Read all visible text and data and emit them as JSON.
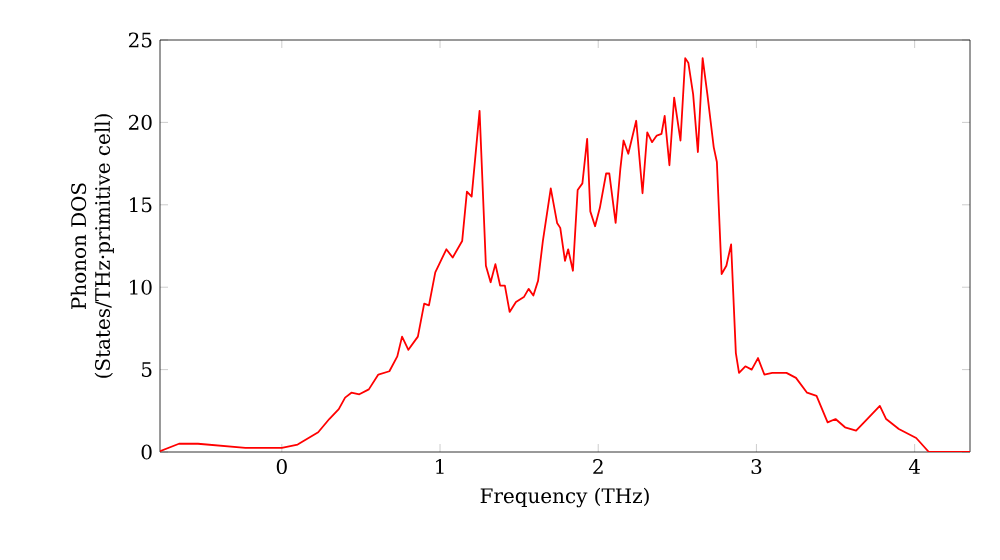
{
  "chart_data": {
    "type": "line",
    "xlabel": "Frequency (THz)",
    "ylabel": "Phonon DOS\n(States/THz·primitive cell)",
    "xlim": [
      -0.77,
      4.35
    ],
    "ylim": [
      0,
      25
    ],
    "xticks": [
      0,
      1,
      2,
      3,
      4
    ],
    "yticks": [
      0,
      5,
      10,
      15,
      20,
      25
    ],
    "series": [
      {
        "color": "#ff0000",
        "x": [
          -0.77,
          -0.65,
          -0.53,
          -0.23,
          0,
          0.1,
          0.23,
          0.3,
          0.36,
          0.4,
          0.44,
          0.49,
          0.55,
          0.61,
          0.68,
          0.73,
          0.76,
          0.8,
          0.86,
          0.9,
          0.93,
          0.97,
          1.04,
          1.08,
          1.14,
          1.17,
          1.2,
          1.25,
          1.29,
          1.32,
          1.35,
          1.38,
          1.41,
          1.44,
          1.48,
          1.53,
          1.56,
          1.59,
          1.62,
          1.65,
          1.7,
          1.74,
          1.76,
          1.79,
          1.81,
          1.84,
          1.87,
          1.9,
          1.93,
          1.95,
          1.98,
          2.01,
          2.05,
          2.07,
          2.11,
          2.14,
          2.16,
          2.19,
          2.24,
          2.28,
          2.31,
          2.34,
          2.37,
          2.4,
          2.42,
          2.45,
          2.48,
          2.52,
          2.55,
          2.57,
          2.6,
          2.63,
          2.66,
          2.69,
          2.73,
          2.75,
          2.78,
          2.81,
          2.84,
          2.87,
          2.89,
          2.93,
          2.97,
          3.01,
          3.05,
          3.1,
          3.19,
          3.25,
          3.32,
          3.38,
          3.45,
          3.5,
          3.56,
          3.63,
          3.7,
          3.78,
          3.82,
          3.9,
          4.01,
          4.09,
          4.35
        ],
        "values": [
          0.05,
          0.5,
          0.5,
          0.25,
          0.25,
          0.45,
          1.2,
          2.0,
          2.6,
          3.3,
          3.6,
          3.5,
          3.8,
          4.7,
          4.9,
          5.8,
          7.0,
          6.2,
          7.0,
          9.0,
          8.9,
          10.9,
          12.3,
          11.8,
          12.8,
          15.8,
          15.5,
          20.7,
          11.3,
          10.3,
          11.4,
          10.1,
          10.1,
          8.5,
          9.1,
          9.4,
          9.9,
          9.5,
          10.4,
          12.8,
          16.0,
          13.9,
          13.6,
          11.6,
          12.3,
          11.0,
          15.9,
          16.3,
          19.0,
          14.6,
          13.7,
          14.8,
          16.9,
          16.9,
          13.9,
          17.2,
          18.9,
          18.1,
          20.1,
          15.7,
          19.4,
          18.8,
          19.2,
          19.3,
          20.4,
          17.4,
          21.5,
          18.9,
          23.9,
          23.6,
          21.7,
          18.2,
          23.9,
          21.7,
          18.5,
          17.6,
          10.8,
          11.3,
          12.6,
          6.0,
          4.8,
          5.2,
          5.0,
          5.7,
          4.7,
          4.8,
          4.8,
          4.5,
          3.6,
          3.4,
          1.8,
          2.0,
          1.5,
          1.3,
          2.0,
          2.8,
          2.0,
          1.4,
          0.85,
          0,
          0
        ]
      }
    ]
  }
}
